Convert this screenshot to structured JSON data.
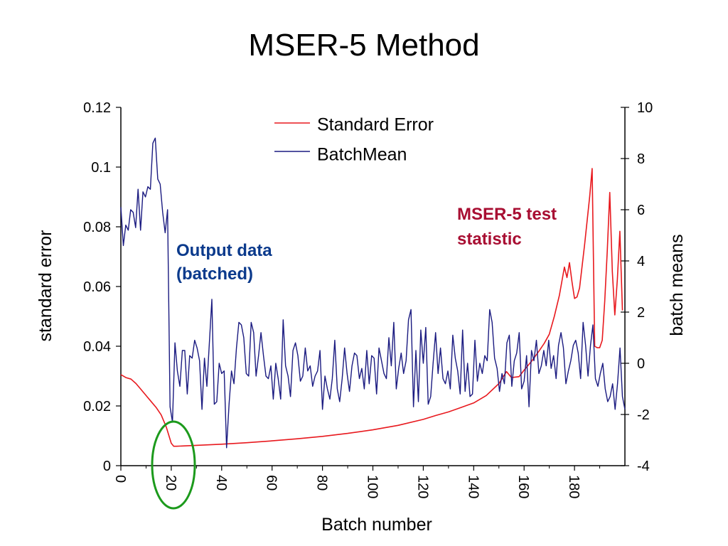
{
  "colors": {
    "standard_error": "#e8191e",
    "batch_mean": "#1a1a80",
    "annotation_blue": "#0b3a8c",
    "annotation_red": "#a80e32",
    "circle": "#1c9a1c"
  },
  "chart_data": {
    "type": "line",
    "title": "MSER-5 Method",
    "xlabel": "Batch number",
    "ylabel_left": "standard error",
    "ylabel_right": "batch means",
    "xlim": [
      0,
      200
    ],
    "ylim_left": [
      0,
      0.12
    ],
    "ylim_right": [
      -4,
      10
    ],
    "x_ticks": [
      "0",
      "20",
      "40",
      "60",
      "80",
      "100",
      "120",
      "140",
      "160",
      "180"
    ],
    "y_left_ticks": [
      "0",
      "0.02",
      "0.04",
      "0.06",
      "0.08",
      "0.1",
      "0.12"
    ],
    "y_right_ticks": [
      "-4",
      "-2",
      "0",
      "2",
      "4",
      "6",
      "8",
      "10"
    ],
    "legend_position": "top-center",
    "grid": false,
    "series": [
      {
        "name": "Standard Error",
        "axis": "left",
        "x": [
          0,
          2,
          4,
          6,
          8,
          10,
          12,
          14,
          16,
          18,
          20,
          21,
          22,
          30,
          40,
          50,
          60,
          70,
          80,
          90,
          100,
          110,
          120,
          125,
          130,
          135,
          140,
          145,
          150,
          153,
          155,
          158,
          160,
          163,
          166,
          168,
          170,
          172,
          174,
          176,
          177,
          178,
          179,
          180,
          181,
          182,
          184,
          186,
          187,
          188,
          189,
          190,
          191,
          192,
          193,
          194,
          195,
          196,
          197,
          198,
          199
        ],
        "values": [
          0.0305,
          0.0295,
          0.029,
          0.0275,
          0.0255,
          0.0235,
          0.0215,
          0.0195,
          0.017,
          0.013,
          0.0075,
          0.0065,
          0.0065,
          0.0068,
          0.0072,
          0.0077,
          0.0083,
          0.009,
          0.0098,
          0.0108,
          0.012,
          0.0135,
          0.0155,
          0.0168,
          0.018,
          0.0195,
          0.021,
          0.0235,
          0.0275,
          0.0315,
          0.0295,
          0.0298,
          0.032,
          0.035,
          0.0385,
          0.041,
          0.044,
          0.05,
          0.057,
          0.0665,
          0.063,
          0.068,
          0.0615,
          0.056,
          0.0565,
          0.0595,
          0.074,
          0.09,
          0.0995,
          0.04,
          0.0395,
          0.0395,
          0.042,
          0.055,
          0.072,
          0.0915,
          0.065,
          0.0505,
          0.0625,
          0.0785,
          0.052
        ]
      },
      {
        "name": "BatchMean",
        "axis": "right",
        "values": [
          6.1,
          4.6,
          5.4,
          5.2,
          6.0,
          5.9,
          5.3,
          6.8,
          5.2,
          6.7,
          6.5,
          6.9,
          6.8,
          8.6,
          8.8,
          7.2,
          7.0,
          5.9,
          5.1,
          6.0,
          -1.7,
          -2.3,
          0.8,
          -0.3,
          -0.9,
          0.5,
          0.5,
          -1.2,
          0.3,
          0.2,
          0.9,
          0.6,
          0.1,
          -1.8,
          0.2,
          -0.9,
          0.8,
          2.5,
          -1.6,
          -1.5,
          0.0,
          -0.4,
          -0.3,
          -3.3,
          -1.6,
          -0.3,
          -0.8,
          0.6,
          1.6,
          1.5,
          1.0,
          -0.4,
          -0.5,
          1.6,
          1.2,
          -0.5,
          0.3,
          1.2,
          0.3,
          -0.5,
          -0.6,
          -0.1,
          -1.4,
          0.0,
          -0.6,
          -1.4,
          1.7,
          -0.1,
          -0.5,
          -1.3,
          0.5,
          0.8,
          0.3,
          -0.7,
          -0.5,
          0.6,
          -0.3,
          -0.1,
          -0.9,
          -0.5,
          -0.3,
          0.5,
          -1.8,
          -0.5,
          -1.0,
          -1.4,
          -0.6,
          0.9,
          -1.0,
          -1.5,
          -0.6,
          0.6,
          -0.4,
          -1.1,
          -0.1,
          0.4,
          0.3,
          -0.6,
          -0.2,
          -1.0,
          0.5,
          -0.8,
          0.3,
          0.2,
          -1.2,
          0.6,
          0.1,
          -0.4,
          -0.6,
          1.0,
          -0.1,
          1.6,
          -1.0,
          -0.2,
          0.4,
          -0.4,
          0.1,
          1.7,
          2.1,
          -1.7,
          0.5,
          -1.5,
          1.3,
          0.0,
          1.4,
          -1.6,
          -1.3,
          0.0,
          1.2,
          -0.4,
          0.6,
          -0.6,
          -0.8,
          -0.3,
          -1.0,
          1.1,
          0.2,
          -0.3,
          -1.2,
          1.3,
          -1.1,
          0.0,
          -1.3,
          -1.2,
          0.9,
          -0.7,
          0.0,
          -0.4,
          0.3,
          0.1,
          2.1,
          1.6,
          0.2,
          -0.2,
          -1.1,
          -0.4,
          -0.8,
          0.8,
          1.1,
          -0.9,
          0.1,
          0.4,
          1.2,
          -1.0,
          -0.7,
          0.3,
          -1.7,
          0.5,
          0.1,
          0.9,
          -0.4,
          -0.1,
          0.5,
          -0.1,
          0.9,
          -0.2,
          0.3,
          -0.6,
          0.7,
          1.2,
          0.6,
          -0.8,
          -0.3,
          0.1,
          0.7,
          0.9,
          0.4,
          -0.6,
          1.6,
          0.7,
          -0.5,
          0.7,
          1.5,
          -0.6,
          -0.9,
          -0.4,
          0.0,
          -1.0,
          -1.5,
          -1.3,
          -0.8,
          -1.8,
          -0.8,
          0.6,
          -1.3,
          -1.8
        ]
      }
    ],
    "annotations": [
      {
        "lines": [
          "Output data",
          "(batched)"
        ],
        "color_key": "annotation_blue"
      },
      {
        "lines": [
          "MSER-5 test",
          "statistic"
        ],
        "color_key": "annotation_red"
      }
    ]
  }
}
